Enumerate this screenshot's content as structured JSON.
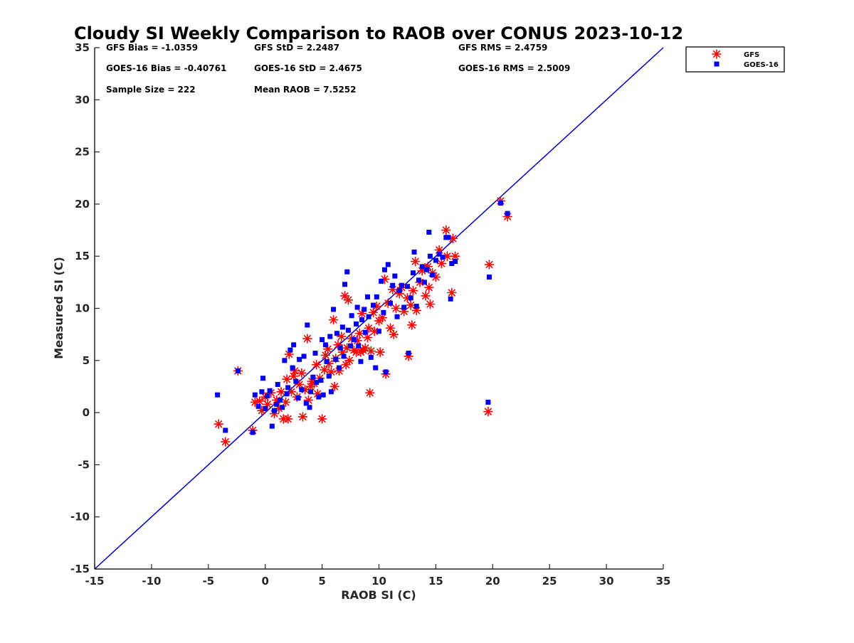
{
  "chart_data": {
    "type": "scatter",
    "title": "Cloudy SI Weekly Comparison to RAOB over CONUS 2023-10-12",
    "xlabel": "RAOB SI (C)",
    "ylabel": "Measured SI (C)",
    "xlim": [
      -15,
      35
    ],
    "ylim": [
      -15,
      35
    ],
    "xticks": [
      "-15",
      "-10",
      "-5",
      "0",
      "5",
      "10",
      "15",
      "20",
      "25",
      "30",
      "35"
    ],
    "yticks": [
      "-15",
      "-10",
      "-5",
      "0",
      "5",
      "10",
      "15",
      "20",
      "25",
      "30",
      "35"
    ],
    "grid": false,
    "legend_position": "outside top-right",
    "reference_line": {
      "from": [
        -15,
        -15
      ],
      "to": [
        35,
        35
      ],
      "color": "#0000cc"
    },
    "stats": [
      "GFS Bias = -1.0359",
      "GFS StD = 2.2487",
      "GFS RMS = 2.4759",
      "GOES-16 Bias = -0.40761",
      "GOES-16 StD = 2.4675",
      "GOES-16 RMS = 2.5009",
      "Sample Size = 222",
      "Mean RAOB = 7.5252"
    ],
    "series": [
      {
        "name": "GFS",
        "marker": "asterisk",
        "color": "#ff0000",
        "points": [
          [
            -4.1,
            -1.1
          ],
          [
            -3.5,
            -2.8
          ],
          [
            -2.4,
            4.0
          ],
          [
            -1.1,
            -1.7
          ],
          [
            -0.9,
            1.0
          ],
          [
            -0.5,
            1.1
          ],
          [
            -0.3,
            0.2
          ],
          [
            0,
            1.5
          ],
          [
            0.2,
            0.8
          ],
          [
            0.5,
            1.9
          ],
          [
            0.8,
            -0.1
          ],
          [
            1,
            1.2
          ],
          [
            1.2,
            0.4
          ],
          [
            1.4,
            2.0
          ],
          [
            1.6,
            -0.6
          ],
          [
            1.8,
            1.0
          ],
          [
            1.9,
            3.2
          ],
          [
            2,
            -0.6
          ],
          [
            2.1,
            5.6
          ],
          [
            2.3,
            2.0
          ],
          [
            2.5,
            3.5
          ],
          [
            2.6,
            4.0
          ],
          [
            2.8,
            1.5
          ],
          [
            3,
            2.7
          ],
          [
            3.2,
            3.8
          ],
          [
            3.3,
            -0.4
          ],
          [
            3.5,
            2.2
          ],
          [
            3.7,
            7.1
          ],
          [
            3.8,
            1.2
          ],
          [
            4,
            2.5
          ],
          [
            4.1,
            3.0
          ],
          [
            4.3,
            2.8
          ],
          [
            4.5,
            4.6
          ],
          [
            4.6,
            1.8
          ],
          [
            4.8,
            3.3
          ],
          [
            5,
            -0.6
          ],
          [
            5.2,
            4.1
          ],
          [
            5.3,
            5.5
          ],
          [
            5.5,
            6.1
          ],
          [
            5.6,
            4.7
          ],
          [
            5.8,
            3.9
          ],
          [
            6,
            8.9
          ],
          [
            6.1,
            2.5
          ],
          [
            6.2,
            5.2
          ],
          [
            6.4,
            6.5
          ],
          [
            6.5,
            4.0
          ],
          [
            6.7,
            7.3
          ],
          [
            6.8,
            5.8
          ],
          [
            7,
            11.2
          ],
          [
            7.1,
            4.6
          ],
          [
            7.2,
            6.2
          ],
          [
            7.3,
            10.8
          ],
          [
            7.4,
            5.0
          ],
          [
            7.6,
            7.1
          ],
          [
            7.8,
            6.0
          ],
          [
            8,
            5.8
          ],
          [
            8.1,
            6.9
          ],
          [
            8.3,
            7.6
          ],
          [
            8.4,
            5.8
          ],
          [
            8.5,
            9.5
          ],
          [
            8.6,
            6.0
          ],
          [
            8.8,
            6.2
          ],
          [
            9,
            7.2
          ],
          [
            9.1,
            8.1
          ],
          [
            9.2,
            1.9
          ],
          [
            9.3,
            5.9
          ],
          [
            9.5,
            9.6
          ],
          [
            9.6,
            7.8
          ],
          [
            9.8,
            10.2
          ],
          [
            10,
            8.8
          ],
          [
            10.1,
            5.8
          ],
          [
            10.3,
            9.1
          ],
          [
            10.5,
            12.8
          ],
          [
            10.6,
            3.7
          ],
          [
            10.8,
            10.5
          ],
          [
            11,
            8.1
          ],
          [
            11.2,
            11.8
          ],
          [
            11.3,
            7.5
          ],
          [
            11.5,
            10.0
          ],
          [
            11.8,
            11.4
          ],
          [
            12,
            12.0
          ],
          [
            12.2,
            9.7
          ],
          [
            12.5,
            11.0
          ],
          [
            12.6,
            5.4
          ],
          [
            12.8,
            10.3
          ],
          [
            12.9,
            8.4
          ],
          [
            13,
            11.7
          ],
          [
            13.2,
            14.5
          ],
          [
            13.3,
            9.8
          ],
          [
            13.6,
            12.5
          ],
          [
            13.8,
            13.6
          ],
          [
            14.1,
            11.2
          ],
          [
            14.3,
            14.0
          ],
          [
            14.4,
            12.0
          ],
          [
            14.5,
            10.4
          ],
          [
            14.7,
            13.4
          ],
          [
            15,
            13.0
          ],
          [
            15.3,
            15.6
          ],
          [
            15.5,
            14.3
          ],
          [
            15.9,
            17.5
          ],
          [
            16,
            15.0
          ],
          [
            16.4,
            11.5
          ],
          [
            16.7,
            15.0
          ],
          [
            16.5,
            16.7
          ],
          [
            19.6,
            0.1
          ],
          [
            19.7,
            14.2
          ],
          [
            20.7,
            20.3
          ],
          [
            21.3,
            18.8
          ]
        ]
      },
      {
        "name": "GOES-16",
        "marker": "square",
        "color": "#0000ee",
        "points": [
          [
            -4.2,
            1.7
          ],
          [
            -3.5,
            -1.7
          ],
          [
            -2.4,
            4.0
          ],
          [
            -1.1,
            -1.9
          ],
          [
            -0.9,
            1.7
          ],
          [
            -0.6,
            0.6
          ],
          [
            -0.3,
            2.0
          ],
          [
            -0.2,
            3.3
          ],
          [
            0,
            0.4
          ],
          [
            0.2,
            1.6
          ],
          [
            0.4,
            2.1
          ],
          [
            0.6,
            -1.3
          ],
          [
            0.8,
            0.2
          ],
          [
            1,
            0.8
          ],
          [
            1.1,
            2.7
          ],
          [
            1.3,
            1.2
          ],
          [
            1.5,
            0.5
          ],
          [
            1.7,
            5.0
          ],
          [
            1.9,
            1.8
          ],
          [
            2,
            2.4
          ],
          [
            2.2,
            6.0
          ],
          [
            2.4,
            4.3
          ],
          [
            2.5,
            6.5
          ],
          [
            2.7,
            3.0
          ],
          [
            2.9,
            1.4
          ],
          [
            3,
            5.1
          ],
          [
            3.2,
            2.2
          ],
          [
            3.4,
            5.4
          ],
          [
            3.6,
            0.9
          ],
          [
            3.7,
            8.4
          ],
          [
            3.9,
            0.5
          ],
          [
            4,
            2.0
          ],
          [
            4.2,
            3.4
          ],
          [
            4.4,
            5.7
          ],
          [
            4.5,
            2.9
          ],
          [
            4.7,
            1.5
          ],
          [
            4.9,
            3.1
          ],
          [
            5,
            7.0
          ],
          [
            5.1,
            1.7
          ],
          [
            5.3,
            6.5
          ],
          [
            5.4,
            4.9
          ],
          [
            5.6,
            3.5
          ],
          [
            5.7,
            7.3
          ],
          [
            5.8,
            2.0
          ],
          [
            6,
            9.9
          ],
          [
            6.2,
            5.1
          ],
          [
            6.3,
            7.6
          ],
          [
            6.5,
            4.3
          ],
          [
            6.6,
            6.2
          ],
          [
            6.8,
            8.2
          ],
          [
            6.9,
            5.4
          ],
          [
            7,
            12.3
          ],
          [
            7.2,
            13.5
          ],
          [
            7.3,
            7.9
          ],
          [
            7.5,
            6.4
          ],
          [
            7.6,
            9.3
          ],
          [
            7.8,
            7.0
          ],
          [
            8,
            8.5
          ],
          [
            8.1,
            10.1
          ],
          [
            8.2,
            6.4
          ],
          [
            8.4,
            4.9
          ],
          [
            8.5,
            8.9
          ],
          [
            8.7,
            9.9
          ],
          [
            8.8,
            7.7
          ],
          [
            9,
            11.1
          ],
          [
            9.1,
            9.2
          ],
          [
            9.3,
            5.3
          ],
          [
            9.5,
            10.3
          ],
          [
            9.7,
            4.3
          ],
          [
            9.8,
            11.1
          ],
          [
            10,
            7.8
          ],
          [
            10.2,
            12.6
          ],
          [
            10.4,
            9.6
          ],
          [
            10.5,
            13.7
          ],
          [
            10.6,
            3.9
          ],
          [
            10.8,
            14.2
          ],
          [
            11,
            10.5
          ],
          [
            11.2,
            12.2
          ],
          [
            11.4,
            13.1
          ],
          [
            11.6,
            9.2
          ],
          [
            11.8,
            11.7
          ],
          [
            12,
            12.2
          ],
          [
            12.2,
            10.1
          ],
          [
            12.5,
            12.1
          ],
          [
            12.6,
            5.7
          ],
          [
            12.8,
            11.0
          ],
          [
            13,
            13.4
          ],
          [
            13.1,
            15.4
          ],
          [
            13.3,
            10.2
          ],
          [
            13.5,
            12.7
          ],
          [
            13.8,
            14.0
          ],
          [
            14,
            12.5
          ],
          [
            14.2,
            13.7
          ],
          [
            14.4,
            17.3
          ],
          [
            14.5,
            15.0
          ],
          [
            14.7,
            13.2
          ],
          [
            15,
            14.6
          ],
          [
            15.3,
            15.2
          ],
          [
            15.6,
            14.9
          ],
          [
            15.9,
            16.8
          ],
          [
            16.1,
            16.8
          ],
          [
            16.3,
            10.9
          ],
          [
            16.4,
            14.3
          ],
          [
            16.7,
            14.5
          ],
          [
            19.6,
            1.0
          ],
          [
            19.7,
            13.0
          ],
          [
            20.7,
            20.1
          ],
          [
            21.3,
            19.1
          ]
        ]
      }
    ]
  }
}
